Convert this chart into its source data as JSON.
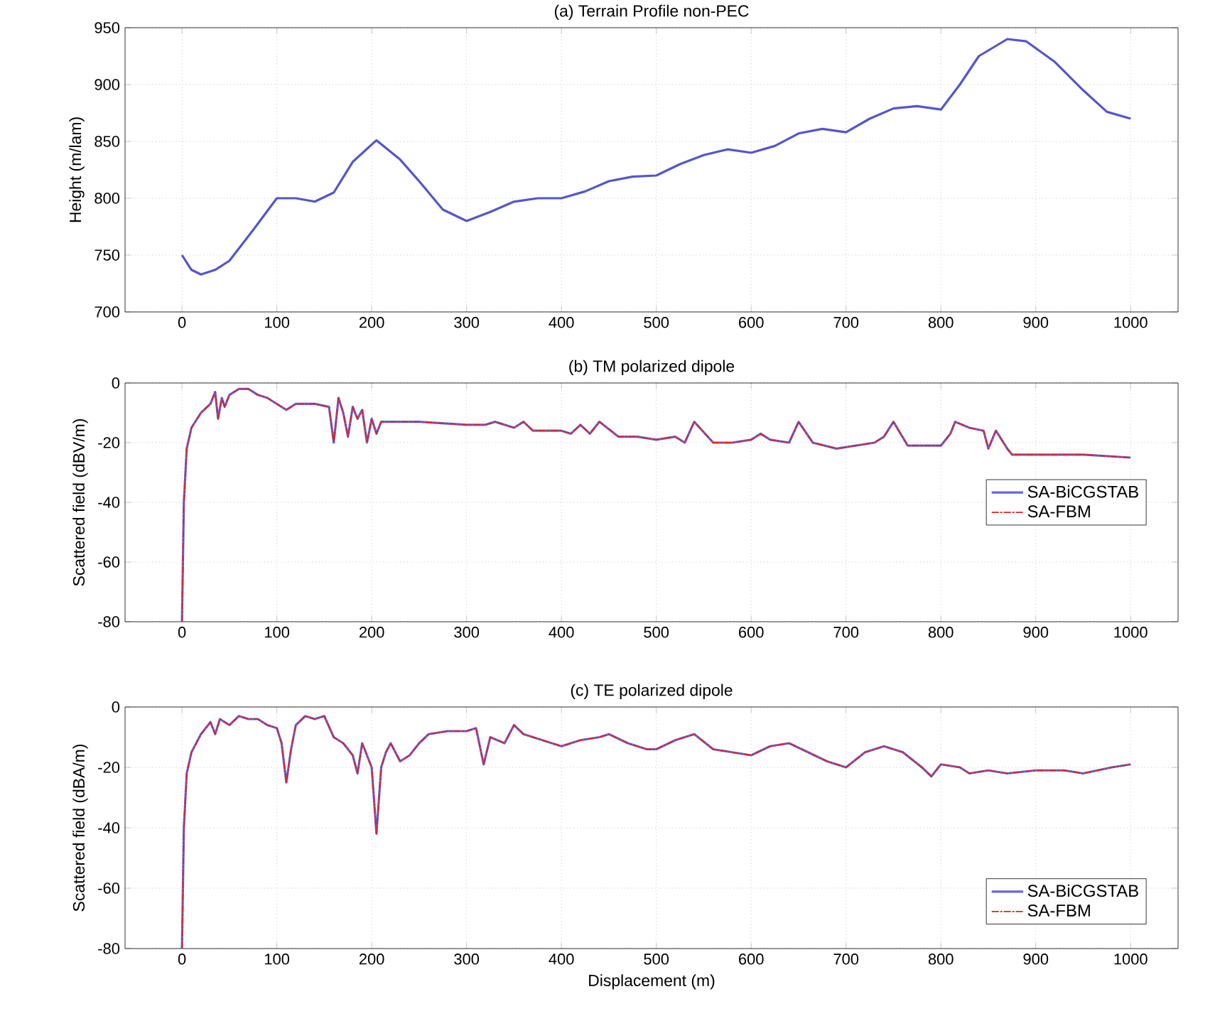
{
  "chart_data": [
    {
      "type": "line",
      "title": "(a) Terrain Profile non-PEC",
      "ylabel": "Height (m/lam)",
      "xlim": [
        -60,
        1050
      ],
      "ylim": [
        700,
        950
      ],
      "xticks": [
        0,
        100,
        200,
        300,
        400,
        500,
        600,
        700,
        800,
        900,
        1000
      ],
      "yticks": [
        700,
        750,
        800,
        850,
        900,
        950
      ],
      "grid": true,
      "legend": false,
      "series": [
        {
          "color": "#5555cc",
          "x": [
            0,
            10,
            20,
            35,
            50,
            75,
            100,
            120,
            140,
            160,
            180,
            205,
            230,
            250,
            275,
            300,
            325,
            350,
            375,
            400,
            425,
            450,
            475,
            500,
            525,
            550,
            575,
            600,
            625,
            650,
            675,
            700,
            725,
            750,
            775,
            800,
            820,
            840,
            870,
            890,
            920,
            950,
            975,
            1000
          ],
          "values": [
            750,
            737,
            733,
            737,
            745,
            772,
            800,
            800,
            797,
            805,
            832,
            851,
            834,
            815,
            790,
            780,
            788,
            797,
            800,
            800,
            806,
            815,
            819,
            820,
            830,
            838,
            843,
            840,
            846,
            857,
            861,
            858,
            870,
            879,
            881,
            878,
            900,
            925,
            940,
            938,
            920,
            895,
            876,
            870
          ]
        }
      ]
    },
    {
      "type": "line",
      "title": "(b) TM polarized dipole",
      "ylabel": "Scattered field (dBV/m)",
      "xlim": [
        -60,
        1050
      ],
      "ylim": [
        -80,
        0
      ],
      "xticks": [
        0,
        100,
        200,
        300,
        400,
        500,
        600,
        700,
        800,
        900,
        1000
      ],
      "yticks": [
        -80,
        -60,
        -40,
        -20,
        0
      ],
      "grid": true,
      "legend": "right",
      "series": [
        {
          "name": "SA-BiCGSTAB",
          "color": "#6666dd",
          "line_style": "solid",
          "x": [
            0,
            2,
            5,
            10,
            20,
            30,
            35,
            38,
            42,
            45,
            50,
            55,
            60,
            70,
            80,
            90,
            100,
            110,
            120,
            140,
            155,
            160,
            165,
            170,
            175,
            180,
            185,
            190,
            195,
            200,
            205,
            210,
            250,
            300,
            320,
            330,
            350,
            360,
            370,
            400,
            410,
            420,
            430,
            440,
            460,
            480,
            500,
            520,
            530,
            540,
            560,
            580,
            600,
            610,
            620,
            640,
            650,
            665,
            690,
            730,
            740,
            750,
            765,
            800,
            810,
            815,
            830,
            845,
            850,
            858,
            870,
            875,
            900,
            950,
            1000
          ],
          "values": [
            -80,
            -40,
            -22,
            -15,
            -10,
            -7,
            -3,
            -12,
            -5,
            -8,
            -4,
            -3,
            -2,
            -2,
            -4,
            -5,
            -7,
            -9,
            -7,
            -7,
            -8,
            -20,
            -5,
            -10,
            -18,
            -8,
            -12,
            -9,
            -20,
            -12,
            -17,
            -13,
            -13,
            -14,
            -14,
            -13,
            -15,
            -13,
            -16,
            -16,
            -17,
            -14,
            -17,
            -13,
            -18,
            -18,
            -19,
            -18,
            -20,
            -13,
            -20,
            -20,
            -19,
            -17,
            -19,
            -20,
            -13,
            -20,
            -22,
            -20,
            -18,
            -13,
            -21,
            -21,
            -17,
            -13,
            -15,
            -16,
            -22,
            -16,
            -22,
            -24,
            -24,
            -24,
            -25
          ]
        },
        {
          "name": "SA-FBM",
          "color": "#dd2222",
          "line_style": "dashed",
          "x": [
            0,
            2,
            5,
            10,
            20,
            30,
            35,
            38,
            42,
            45,
            50,
            55,
            60,
            70,
            80,
            90,
            100,
            110,
            120,
            140,
            155,
            160,
            165,
            170,
            175,
            180,
            185,
            190,
            195,
            200,
            205,
            210,
            250,
            300,
            320,
            330,
            350,
            360,
            370,
            400,
            410,
            420,
            430,
            440,
            460,
            480,
            500,
            520,
            530,
            540,
            560,
            580,
            600,
            610,
            620,
            640,
            650,
            665,
            690,
            730,
            740,
            750,
            765,
            800,
            810,
            815,
            830,
            845,
            850,
            858,
            870,
            875,
            900,
            950,
            1000
          ],
          "values": [
            -80,
            -40,
            -22,
            -15,
            -10,
            -7,
            -3,
            -12,
            -5,
            -8,
            -4,
            -3,
            -2,
            -2,
            -4,
            -5,
            -7,
            -9,
            -7,
            -7,
            -8,
            -20,
            -5,
            -10,
            -18,
            -8,
            -12,
            -9,
            -20,
            -12,
            -17,
            -13,
            -13,
            -14,
            -14,
            -13,
            -15,
            -13,
            -16,
            -16,
            -17,
            -14,
            -17,
            -13,
            -18,
            -18,
            -19,
            -18,
            -20,
            -13,
            -20,
            -20,
            -19,
            -17,
            -19,
            -20,
            -13,
            -20,
            -22,
            -20,
            -18,
            -13,
            -21,
            -21,
            -17,
            -13,
            -15,
            -16,
            -22,
            -16,
            -22,
            -24,
            -24,
            -24,
            -25
          ]
        }
      ]
    },
    {
      "type": "line",
      "title": "(c) TE polarized dipole",
      "xlabel": "Displacement (m)",
      "ylabel": "Scattered field (dBA/m)",
      "xlim": [
        -60,
        1050
      ],
      "ylim": [
        -80,
        0
      ],
      "xticks": [
        0,
        100,
        200,
        300,
        400,
        500,
        600,
        700,
        800,
        900,
        1000
      ],
      "yticks": [
        -80,
        -60,
        -40,
        -20,
        0
      ],
      "grid": true,
      "legend": "bottom right",
      "series": [
        {
          "name": "SA-BiCGSTAB",
          "color": "#6666dd",
          "line_style": "solid",
          "x": [
            0,
            2,
            5,
            10,
            20,
            30,
            35,
            40,
            50,
            60,
            70,
            80,
            90,
            100,
            105,
            110,
            115,
            120,
            130,
            140,
            150,
            160,
            170,
            180,
            185,
            190,
            200,
            205,
            210,
            215,
            220,
            230,
            240,
            250,
            260,
            280,
            300,
            310,
            318,
            325,
            340,
            350,
            360,
            380,
            400,
            420,
            440,
            450,
            470,
            490,
            500,
            520,
            540,
            560,
            580,
            600,
            620,
            640,
            660,
            680,
            700,
            720,
            740,
            760,
            780,
            790,
            800,
            820,
            830,
            850,
            870,
            900,
            930,
            950,
            980,
            1000
          ],
          "values": [
            -80,
            -40,
            -22,
            -15,
            -9,
            -5,
            -9,
            -4,
            -6,
            -3,
            -4,
            -4,
            -6,
            -7,
            -12,
            -25,
            -14,
            -6,
            -3,
            -4,
            -3,
            -10,
            -12,
            -16,
            -22,
            -12,
            -20,
            -42,
            -20,
            -15,
            -12,
            -18,
            -16,
            -12,
            -9,
            -8,
            -8,
            -7,
            -19,
            -10,
            -12,
            -6,
            -9,
            -11,
            -13,
            -11,
            -10,
            -9,
            -12,
            -14,
            -14,
            -11,
            -9,
            -14,
            -15,
            -16,
            -13,
            -12,
            -15,
            -18,
            -20,
            -15,
            -13,
            -15,
            -20,
            -23,
            -19,
            -20,
            -22,
            -21,
            -22,
            -21,
            -21,
            -22,
            -20,
            -19
          ]
        },
        {
          "name": "SA-FBM",
          "color": "#dd2222",
          "line_style": "dashed",
          "x": [
            0,
            2,
            5,
            10,
            20,
            30,
            35,
            40,
            50,
            60,
            70,
            80,
            90,
            100,
            105,
            110,
            115,
            120,
            130,
            140,
            150,
            160,
            170,
            180,
            185,
            190,
            200,
            205,
            210,
            215,
            220,
            230,
            240,
            250,
            260,
            280,
            300,
            310,
            318,
            325,
            340,
            350,
            360,
            380,
            400,
            420,
            440,
            450,
            470,
            490,
            500,
            520,
            540,
            560,
            580,
            600,
            620,
            640,
            660,
            680,
            700,
            720,
            740,
            760,
            780,
            790,
            800,
            820,
            830,
            850,
            870,
            900,
            930,
            950,
            980,
            1000
          ],
          "values": [
            -80,
            -40,
            -22,
            -15,
            -9,
            -5,
            -9,
            -4,
            -6,
            -3,
            -4,
            -4,
            -6,
            -7,
            -12,
            -25,
            -14,
            -6,
            -3,
            -4,
            -3,
            -10,
            -12,
            -16,
            -22,
            -12,
            -20,
            -42,
            -20,
            -15,
            -12,
            -18,
            -16,
            -12,
            -9,
            -8,
            -8,
            -7,
            -19,
            -10,
            -12,
            -6,
            -9,
            -11,
            -13,
            -11,
            -10,
            -9,
            -12,
            -14,
            -14,
            -11,
            -9,
            -14,
            -15,
            -16,
            -13,
            -12,
            -15,
            -18,
            -20,
            -15,
            -13,
            -15,
            -20,
            -23,
            -19,
            -20,
            -22,
            -21,
            -22,
            -21,
            -21,
            -22,
            -20,
            -19
          ]
        }
      ]
    }
  ]
}
